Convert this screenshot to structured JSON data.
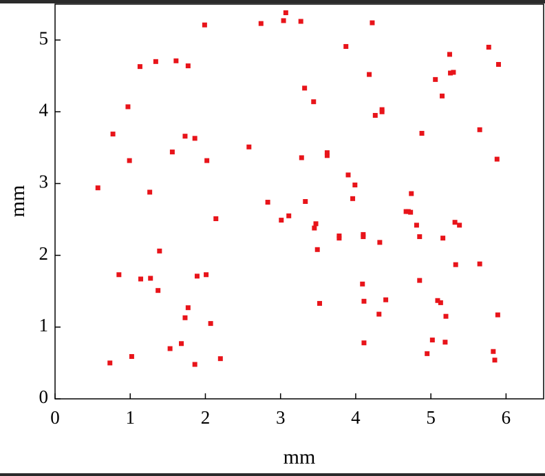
{
  "chart_data": {
    "type": "scatter",
    "xlabel": "mm",
    "ylabel": "mm",
    "color": "#e8141a",
    "marker": "square",
    "xlim": [
      0,
      6.5
    ],
    "ylim": [
      0,
      5.5
    ],
    "xticks": [
      0,
      1,
      2,
      3,
      4,
      5,
      6
    ],
    "yticks": [
      0,
      1,
      2,
      3,
      4,
      5
    ],
    "x": [
      0.57,
      0.73,
      0.77,
      0.85,
      0.97,
      0.99,
      1.02,
      1.13,
      1.14,
      1.26,
      1.27,
      1.34,
      1.37,
      1.39,
      1.53,
      1.56,
      1.61,
      1.68,
      1.73,
      1.73,
      1.77,
      1.77,
      1.86,
      1.86,
      1.89,
      1.99,
      2.01,
      2.02,
      2.07,
      2.14,
      2.2,
      2.58,
      2.74,
      2.83,
      3.01,
      3.04,
      3.07,
      3.11,
      3.27,
      3.28,
      3.32,
      3.33,
      3.44,
      3.45,
      3.47,
      3.49,
      3.52,
      3.62,
      3.62,
      3.78,
      3.78,
      3.87,
      3.9,
      3.96,
      3.99,
      4.09,
      4.1,
      4.1,
      4.11,
      4.11,
      4.18,
      4.22,
      4.26,
      4.31,
      4.32,
      4.35,
      4.35,
      4.4,
      4.67,
      4.7,
      4.73,
      4.74,
      4.81,
      4.85,
      4.85,
      4.88,
      4.95,
      5.02,
      5.06,
      5.09,
      5.13,
      5.15,
      5.16,
      5.19,
      5.2,
      5.25,
      5.26,
      5.3,
      5.32,
      5.33,
      5.38,
      5.65,
      5.65,
      5.77,
      5.83,
      5.85,
      5.88,
      5.89,
      5.9
    ],
    "y": [
      2.94,
      0.5,
      3.69,
      1.73,
      4.07,
      3.32,
      0.59,
      4.63,
      1.67,
      2.88,
      1.68,
      4.7,
      1.51,
      2.06,
      0.7,
      3.44,
      4.71,
      0.77,
      3.66,
      1.13,
      1.27,
      4.64,
      3.63,
      0.48,
      1.71,
      5.21,
      1.73,
      3.32,
      1.05,
      2.51,
      0.56,
      3.51,
      5.23,
      2.74,
      2.49,
      5.27,
      5.38,
      2.55,
      5.26,
      3.36,
      4.33,
      2.75,
      4.14,
      2.38,
      2.44,
      2.08,
      1.33,
      3.43,
      3.39,
      2.24,
      2.27,
      4.91,
      3.12,
      2.79,
      2.98,
      1.6,
      2.29,
      2.26,
      1.36,
      0.78,
      4.52,
      5.24,
      3.95,
      1.18,
      2.18,
      4.0,
      4.03,
      1.38,
      2.61,
      2.61,
      2.6,
      2.86,
      2.42,
      1.65,
      2.26,
      3.7,
      0.63,
      0.82,
      4.45,
      1.37,
      1.34,
      4.22,
      2.24,
      0.79,
      1.15,
      4.8,
      4.54,
      4.55,
      2.46,
      1.87,
      2.42,
      3.75,
      1.88,
      4.9,
      0.66,
      0.54,
      3.34,
      1.17,
      4.66
    ]
  }
}
